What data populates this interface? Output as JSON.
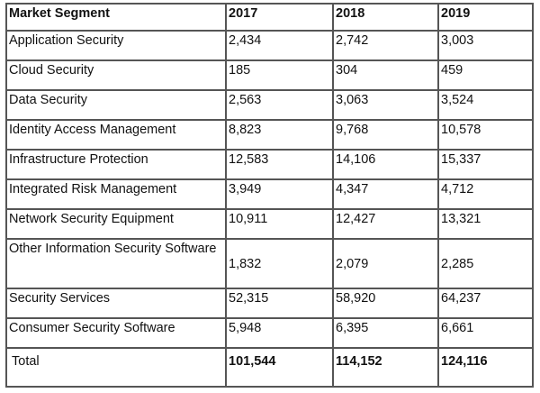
{
  "table": {
    "headers": [
      "Market Segment",
      "2017",
      "2018",
      "2019"
    ],
    "rows": [
      {
        "segment": "Application Security",
        "values": [
          "2,434",
          "2,742",
          "3,003"
        ]
      },
      {
        "segment": "Cloud Security",
        "values": [
          "185",
          "304",
          "459"
        ]
      },
      {
        "segment": "Data Security",
        "values": [
          "2,563",
          "3,063",
          "3,524"
        ]
      },
      {
        "segment": "Identity Access Management",
        "values": [
          "8,823",
          "9,768",
          "10,578"
        ]
      },
      {
        "segment": "Infrastructure Protection",
        "values": [
          "12,583",
          "14,106",
          "15,337"
        ]
      },
      {
        "segment": "Integrated Risk Management",
        "values": [
          "3,949",
          "4,347",
          "4,712"
        ]
      },
      {
        "segment": "Network Security Equipment",
        "values": [
          "10,911",
          "12,427",
          "13,321"
        ]
      },
      {
        "segment": "Other Information Security Software",
        "values": [
          "1,832",
          "2,079",
          "2,285"
        ]
      },
      {
        "segment": "Security Services",
        "values": [
          "52,315",
          "58,920",
          "64,237"
        ]
      },
      {
        "segment": "Consumer Security Software",
        "values": [
          "5,948",
          "6,395",
          "6,661"
        ]
      }
    ],
    "total": {
      "label": "Total",
      "values": [
        "101,544",
        "114,152",
        "124,116"
      ]
    }
  }
}
